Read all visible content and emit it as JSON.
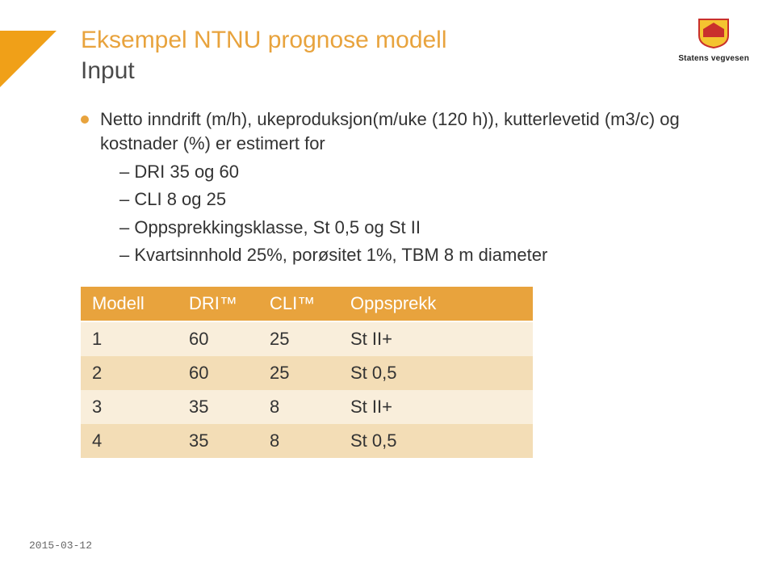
{
  "header": {
    "title_main": "Eksempel NTNU prognose modell",
    "title_sub": "Input",
    "logo_text": "Statens vegvesen"
  },
  "bullet": {
    "text": "Netto inndrift (m/h), ukeproduksjon(m/uke (120 h)), kutterlevetid (m3/c) og kostnader (%) er estimert for"
  },
  "sub_items": [
    "DRI 35 og 60",
    "CLI 8 og 25",
    "Oppsprekkingsklasse, St 0,5 og St II",
    "Kvartsinnhold 25%, porøsitet 1%, TBM 8 m diameter"
  ],
  "table": {
    "columns": [
      "Modell",
      "DRI™",
      "CLI™",
      "Oppsprekk"
    ],
    "col_widths": [
      "120px",
      "100px",
      "100px",
      "240px"
    ],
    "rows": [
      [
        "1",
        "60",
        "25",
        "St II+"
      ],
      [
        "2",
        "60",
        "25",
        "St 0,5"
      ],
      [
        "3",
        "35",
        "8",
        "St II+"
      ],
      [
        "4",
        "35",
        "8",
        "St 0,5"
      ]
    ],
    "header_bg": "#e8a33d",
    "header_color": "#ffffff",
    "row_odd_bg": "#f9eedb",
    "row_even_bg": "#f3ddb6"
  },
  "footer": {
    "date": "2015-03-12"
  },
  "colors": {
    "accent": "#e8a33d",
    "text": "#333333",
    "background": "#ffffff"
  }
}
